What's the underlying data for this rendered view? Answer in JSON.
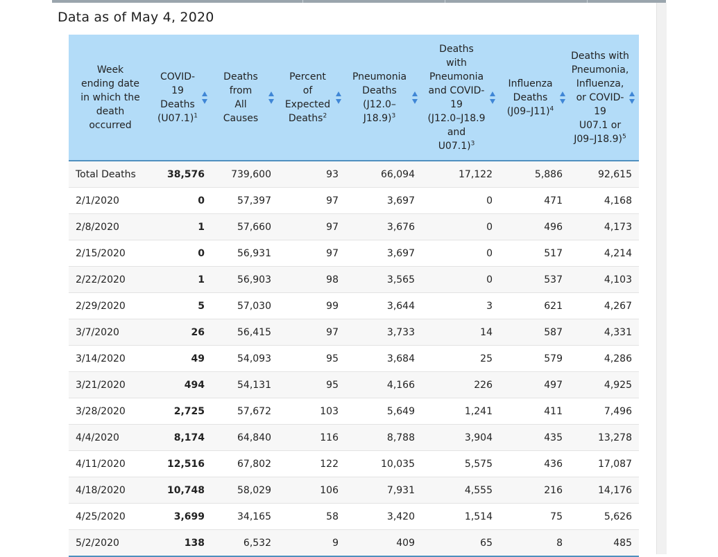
{
  "page": {
    "data_as_of": "Data as of May 4, 2020"
  },
  "table": {
    "headers": [
      {
        "lines": [
          "Week",
          "ending date",
          "in which the",
          "death",
          "occurred"
        ],
        "sup": ""
      },
      {
        "lines": [
          "COVID-",
          "19",
          "Deaths",
          "(U07.1)"
        ],
        "sup": "1"
      },
      {
        "lines": [
          "Deaths",
          "from",
          "All",
          "Causes"
        ],
        "sup": ""
      },
      {
        "lines": [
          "Percent",
          "of",
          "Expected",
          "Deaths"
        ],
        "sup": "2"
      },
      {
        "lines": [
          "Pneumonia",
          "Deaths",
          "(J12.0–",
          "J18.9)"
        ],
        "sup": "3"
      },
      {
        "lines": [
          "Deaths",
          "with",
          "Pneumonia",
          "and COVID-",
          "19",
          "(J12.0–J18.9",
          "and",
          "U07.1)"
        ],
        "sup": "3"
      },
      {
        "lines": [
          "Influenza",
          "Deaths",
          "(J09–J11)"
        ],
        "sup": "4"
      },
      {
        "lines": [
          "Deaths with",
          "Pneumonia,",
          "Influenza,",
          "or COVID-",
          "19",
          "U07.1 or",
          "J09–J18.9)"
        ],
        "sup": "5"
      }
    ],
    "rows": [
      [
        "Total Deaths",
        "38,576",
        "739,600",
        "93",
        "66,094",
        "17,122",
        "5,886",
        "92,615"
      ],
      [
        "2/1/2020",
        "0",
        "57,397",
        "97",
        "3,697",
        "0",
        "471",
        "4,168"
      ],
      [
        "2/8/2020",
        "1",
        "57,660",
        "97",
        "3,676",
        "0",
        "496",
        "4,173"
      ],
      [
        "2/15/2020",
        "0",
        "56,931",
        "97",
        "3,697",
        "0",
        "517",
        "4,214"
      ],
      [
        "2/22/2020",
        "1",
        "56,903",
        "98",
        "3,565",
        "0",
        "537",
        "4,103"
      ],
      [
        "2/29/2020",
        "5",
        "57,030",
        "99",
        "3,644",
        "3",
        "621",
        "4,267"
      ],
      [
        "3/7/2020",
        "26",
        "56,415",
        "97",
        "3,733",
        "14",
        "587",
        "4,331"
      ],
      [
        "3/14/2020",
        "49",
        "54,093",
        "95",
        "3,684",
        "25",
        "579",
        "4,286"
      ],
      [
        "3/21/2020",
        "494",
        "54,131",
        "95",
        "4,166",
        "226",
        "497",
        "4,925"
      ],
      [
        "3/28/2020",
        "2,725",
        "57,672",
        "103",
        "5,649",
        "1,241",
        "411",
        "7,496"
      ],
      [
        "4/4/2020",
        "8,174",
        "64,840",
        "116",
        "8,788",
        "3,904",
        "435",
        "13,278"
      ],
      [
        "4/11/2020",
        "12,516",
        "67,802",
        "122",
        "10,035",
        "5,575",
        "436",
        "17,087"
      ],
      [
        "4/18/2020",
        "10,748",
        "58,029",
        "106",
        "7,931",
        "4,555",
        "216",
        "14,176"
      ],
      [
        "4/25/2020",
        "3,699",
        "34,165",
        "58",
        "3,420",
        "1,514",
        "75",
        "5,626"
      ],
      [
        "5/2/2020",
        "138",
        "6,532",
        "9",
        "409",
        "65",
        "8",
        "485"
      ]
    ]
  },
  "colors": {
    "header_bg": "#b3dcf8",
    "sort_icon": "#3f86d6",
    "header_rule": "#4f8fbf",
    "stripe": "#f7f7f7"
  },
  "icons": {
    "sort": "sort-arrows-icon"
  }
}
